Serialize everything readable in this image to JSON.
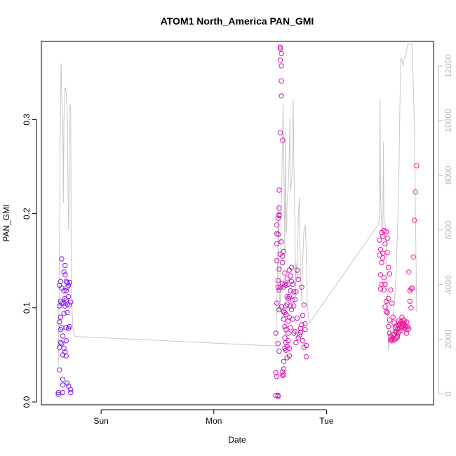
{
  "chart_data": {
    "type": "scatter",
    "title": "ATOM1 North_America PAN_GMI",
    "xlabel": "Date",
    "ylabel": "PAN_GMI",
    "x_ticks": [
      "Sun",
      "Mon",
      "Tue"
    ],
    "x_tick_days": [
      1,
      2,
      3
    ],
    "xlim_days": [
      0.47,
      3.95
    ],
    "y_ticks": [
      0.0,
      0.1,
      0.2,
      0.3
    ],
    "y_tick_labels": [
      "0.0",
      "0.1",
      "0.2",
      "0.3"
    ],
    "ylim": [
      -0.003,
      0.383
    ],
    "y2_ticks": [
      0,
      2000,
      4000,
      6000,
      8000,
      10000,
      12000
    ],
    "y2_tick_labels": [
      "0",
      "2000",
      "4000",
      "6000",
      "8000",
      "10000",
      "12000"
    ],
    "y2lim": [
      -400,
      12900
    ],
    "grid": false,
    "legend": "none",
    "colors": {
      "points_start": "#7a1cf0",
      "points_end": "#ff1493",
      "line": "#c8c8c8",
      "axis": "#000000",
      "axis_right": "#b8b8b8"
    },
    "series": [
      {
        "kind": "points",
        "x_days": [
          0.62,
          0.62,
          0.63,
          0.63,
          0.63,
          0.63,
          0.63,
          0.64,
          0.64,
          0.64,
          0.64,
          0.64,
          0.65,
          0.65,
          0.65,
          0.65,
          0.65,
          0.66,
          0.66,
          0.66,
          0.66,
          0.66,
          0.67,
          0.67,
          0.67,
          0.67,
          0.67,
          0.68,
          0.68,
          0.68,
          0.68,
          0.68,
          0.69,
          0.69,
          0.69,
          0.69,
          0.69,
          0.69,
          0.7,
          0.7,
          0.7,
          0.7,
          0.7,
          0.71,
          0.71,
          0.71,
          0.71,
          0.72,
          0.72,
          0.72,
          0.73,
          0.73,
          0.73,
          2.55,
          2.55,
          2.55,
          2.56,
          2.56,
          2.56,
          2.56,
          2.56,
          2.56,
          2.57,
          2.57,
          2.57,
          2.57,
          2.57,
          2.57,
          2.57,
          2.58,
          2.58,
          2.58,
          2.58,
          2.58,
          2.58,
          2.58,
          2.58,
          2.59,
          2.59,
          2.59,
          2.59,
          2.59,
          2.59,
          2.6,
          2.6,
          2.6,
          2.6,
          2.6,
          2.6,
          2.61,
          2.61,
          2.61,
          2.61,
          2.61,
          2.61,
          2.62,
          2.62,
          2.62,
          2.62,
          2.62,
          2.62,
          2.62,
          2.63,
          2.63,
          2.63,
          2.63,
          2.63,
          2.63,
          2.64,
          2.64,
          2.64,
          2.64,
          2.64,
          2.64,
          2.65,
          2.65,
          2.65,
          2.65,
          2.65,
          2.66,
          2.66,
          2.66,
          2.66,
          2.66,
          2.67,
          2.67,
          2.67,
          2.67,
          2.67,
          2.68,
          2.68,
          2.68,
          2.68,
          2.69,
          2.69,
          2.69,
          2.7,
          2.7,
          2.7,
          2.71,
          2.71,
          2.71,
          2.72,
          2.72,
          2.73,
          2.73,
          2.74,
          2.74,
          2.75,
          2.75,
          2.76,
          2.77,
          2.77,
          2.78,
          2.78,
          2.79,
          2.79,
          2.8,
          2.8,
          2.81,
          2.81,
          2.82,
          2.82,
          3.47,
          3.47,
          3.48,
          3.48,
          3.48,
          3.49,
          3.49,
          3.49,
          3.5,
          3.5,
          3.5,
          3.51,
          3.51,
          3.51,
          3.52,
          3.52,
          3.52,
          3.53,
          3.53,
          3.53,
          3.54,
          3.54,
          3.54,
          3.55,
          3.55,
          3.55,
          3.56,
          3.56,
          3.56,
          3.57,
          3.57,
          3.57,
          3.58,
          3.58,
          3.58,
          3.59,
          3.59,
          3.59,
          3.6,
          3.6,
          3.6,
          3.61,
          3.61,
          3.61,
          3.62,
          3.62,
          3.62,
          3.63,
          3.63,
          3.63,
          3.64,
          3.64,
          3.64,
          3.65,
          3.65,
          3.65,
          3.66,
          3.66,
          3.66,
          3.67,
          3.67,
          3.67,
          3.68,
          3.68,
          3.68,
          3.69,
          3.69,
          3.69,
          3.7,
          3.7,
          3.71,
          3.71,
          3.72,
          3.72,
          3.73,
          3.73,
          3.74,
          3.74,
          3.75,
          3.75,
          3.76,
          3.77,
          3.78,
          3.79,
          3.8
        ],
        "y": [
          0.008,
          0.01,
          0.034,
          0.058,
          0.085,
          0.102,
          0.124,
          0.128,
          0.107,
          0.09,
          0.077,
          0.063,
          0.152,
          0.121,
          0.105,
          0.079,
          0.062,
          0.024,
          0.018,
          0.01,
          0.05,
          0.07,
          0.105,
          0.118,
          0.138,
          0.094,
          0.057,
          0.145,
          0.135,
          0.11,
          0.102,
          0.053,
          0.128,
          0.118,
          0.108,
          0.079,
          0.065,
          0.049,
          0.127,
          0.122,
          0.104,
          0.095,
          0.02,
          0.124,
          0.112,
          0.078,
          0.017,
          0.127,
          0.103,
          0.08,
          0.106,
          0.013,
          0.01,
          0.007,
          0.031,
          0.073,
          0.15,
          0.188,
          0.179,
          0.168,
          0.105,
          0.027,
          0.195,
          0.178,
          0.129,
          0.122,
          0.062,
          0.007,
          0.006,
          0.198,
          0.141,
          0.119,
          0.098,
          0.054,
          0.225,
          0.206,
          0.199,
          0.375,
          0.377,
          0.363,
          0.286,
          0.157,
          0.122,
          0.37,
          0.357,
          0.341,
          0.325,
          0.17,
          0.101,
          0.278,
          0.155,
          0.148,
          0.126,
          0.032,
          0.028,
          0.16,
          0.122,
          0.096,
          0.088,
          0.043,
          0.035,
          0.029,
          0.137,
          0.125,
          0.095,
          0.08,
          0.068,
          0.057,
          0.124,
          0.102,
          0.093,
          0.077,
          0.063,
          0.055,
          0.131,
          0.112,
          0.104,
          0.059,
          0.047,
          0.125,
          0.11,
          0.086,
          0.073,
          0.065,
          0.14,
          0.112,
          0.09,
          0.057,
          0.049,
          0.134,
          0.118,
          0.102,
          0.079,
          0.143,
          0.128,
          0.098,
          0.125,
          0.108,
          0.088,
          0.117,
          0.102,
          0.073,
          0.109,
          0.075,
          0.117,
          0.063,
          0.14,
          0.089,
          0.13,
          0.068,
          0.071,
          0.074,
          0.078,
          0.082,
          0.122,
          0.065,
          0.092,
          0.058,
          0.103,
          0.083,
          0.077,
          0.06,
          0.048,
          0.156,
          0.172,
          0.12,
          0.162,
          0.135,
          0.125,
          0.18,
          0.148,
          0.158,
          0.176,
          0.153,
          0.132,
          0.182,
          0.119,
          0.101,
          0.168,
          0.125,
          0.107,
          0.096,
          0.181,
          0.174,
          0.095,
          0.159,
          0.143,
          0.08,
          0.11,
          0.087,
          0.073,
          0.136,
          0.07,
          0.066,
          0.119,
          0.065,
          0.067,
          0.105,
          0.071,
          0.068,
          0.09,
          0.066,
          0.072,
          0.084,
          0.067,
          0.075,
          0.079,
          0.068,
          0.081,
          0.074,
          0.077,
          0.071,
          0.069,
          0.086,
          0.081,
          0.074,
          0.078,
          0.083,
          0.082,
          0.08,
          0.076,
          0.085,
          0.083,
          0.079,
          0.09,
          0.087,
          0.081,
          0.084,
          0.082,
          0.078,
          0.086,
          0.081,
          0.079,
          0.085,
          0.073,
          0.08,
          0.077,
          0.078,
          0.138,
          0.118,
          0.107,
          0.12,
          0.1,
          0.121,
          0.154,
          0.193,
          0.223,
          0.251
        ]
      },
      {
        "kind": "line",
        "axis": "right",
        "x_days": [
          0.62,
          0.63,
          0.64,
          0.645,
          0.65,
          0.66,
          0.665,
          0.67,
          0.68,
          0.685,
          0.69,
          0.7,
          0.71,
          0.715,
          0.72,
          0.73,
          0.735,
          0.74,
          0.75,
          0.76,
          0.77,
          0.775,
          2.55,
          2.56,
          2.57,
          2.575,
          2.58,
          2.59,
          2.595,
          2.6,
          2.61,
          2.615,
          2.62,
          2.63,
          2.635,
          2.64,
          2.645,
          2.65,
          2.66,
          2.67,
          2.675,
          2.68,
          2.69,
          2.7,
          2.705,
          2.71,
          2.72,
          2.725,
          2.73,
          2.74,
          2.75,
          2.76,
          2.765,
          2.77,
          2.78,
          2.79,
          2.8,
          2.81,
          2.82,
          2.83,
          2.84,
          2.85,
          3.46,
          3.47,
          3.475,
          3.48,
          3.49,
          3.5,
          3.505,
          3.51,
          3.52,
          3.525,
          3.53,
          3.54,
          3.55,
          3.56,
          3.57,
          3.58,
          3.59,
          3.6,
          3.61,
          3.62,
          3.63,
          3.64,
          3.65,
          3.66,
          3.67,
          3.68,
          3.69,
          3.7,
          3.72,
          3.74,
          3.76,
          3.78,
          3.8
        ],
        "y": [
          1000,
          5000,
          11000,
          12100,
          11000,
          10000,
          7000,
          10000,
          11200,
          11200,
          11000,
          10400,
          6000,
          7000,
          10600,
          10500,
          4000,
          3300,
          2400,
          2200,
          2100,
          2100,
          1750,
          3500,
          5600,
          7000,
          3800,
          3000,
          5800,
          6900,
          9600,
          10600,
          8800,
          5000,
          9600,
          6800,
          5900,
          7000,
          7500,
          8800,
          10100,
          7400,
          7800,
          8700,
          10800,
          8500,
          6400,
          3500,
          4800,
          4200,
          6500,
          7200,
          5500,
          4200,
          3400,
          5000,
          6000,
          6200,
          5400,
          3200,
          2800,
          2600,
          6200,
          6400,
          10800,
          7200,
          6000,
          5900,
          9200,
          6500,
          6200,
          6000,
          5800,
          3600,
          1600,
          2100,
          2300,
          2500,
          2800,
          3200,
          3800,
          4600,
          6000,
          7200,
          10200,
          12300,
          12200,
          12000,
          12300,
          12300,
          12800,
          12800,
          12800,
          9800,
          3000
        ]
      }
    ]
  }
}
